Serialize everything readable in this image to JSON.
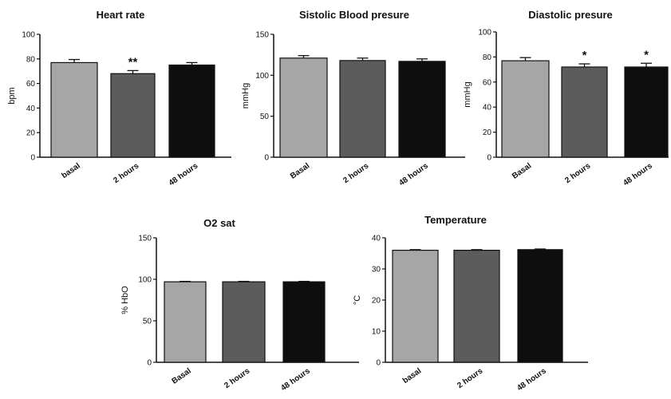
{
  "colors": {
    "basal": "#a6a6a6",
    "two_hours": "#5c5c5c",
    "forty_eight_hours": "#0e0e0e",
    "axis": "#111111"
  },
  "chart_data": [
    {
      "type": "bar",
      "title": "Heart rate",
      "ylabel": "bpm",
      "ylim": [
        0,
        100
      ],
      "yticks": [
        0,
        20,
        40,
        60,
        80,
        100
      ],
      "categories": [
        "basal",
        "2 hours",
        "48 hours"
      ],
      "values": [
        77,
        68,
        75
      ],
      "errors": [
        2.5,
        2.5,
        2
      ],
      "significance": [
        "",
        "**",
        ""
      ],
      "grid": false
    },
    {
      "type": "bar",
      "title": "Sistolic Blood presure",
      "ylabel": "mmHg",
      "ylim": [
        0,
        150
      ],
      "yticks": [
        0,
        50,
        100,
        150
      ],
      "categories": [
        "Basal",
        "2 hours",
        "48 hours"
      ],
      "values": [
        121,
        118,
        117
      ],
      "errors": [
        3,
        3,
        3
      ],
      "significance": [
        "",
        "",
        ""
      ],
      "grid": false
    },
    {
      "type": "bar",
      "title": "Diastolic presure",
      "ylabel": "mmHg",
      "ylim": [
        0,
        100
      ],
      "yticks": [
        0,
        20,
        40,
        60,
        80,
        100
      ],
      "categories": [
        "Basal",
        "2 hours",
        "48 hours"
      ],
      "values": [
        77,
        72,
        72
      ],
      "errors": [
        2.5,
        2.5,
        3
      ],
      "significance": [
        "",
        "*",
        "*"
      ],
      "grid": false
    },
    {
      "type": "bar",
      "title": "O2 sat",
      "ylabel": "%  HbO",
      "ylim": [
        0,
        150
      ],
      "yticks": [
        0,
        50,
        100,
        150
      ],
      "categories": [
        "Basal",
        "2 hours",
        "48 hours"
      ],
      "values": [
        97,
        97,
        97
      ],
      "errors": [
        0.5,
        0.5,
        0.5
      ],
      "significance": [
        "",
        "",
        ""
      ],
      "grid": false
    },
    {
      "type": "bar",
      "title": "Temperature",
      "ylabel": "°C",
      "ylim": [
        0,
        40
      ],
      "yticks": [
        0,
        10,
        20,
        30,
        40
      ],
      "categories": [
        "basal",
        "2 hours",
        "48 hours"
      ],
      "values": [
        36,
        36,
        36.2
      ],
      "errors": [
        0.2,
        0.2,
        0.2
      ],
      "significance": [
        "",
        "",
        ""
      ],
      "grid": false
    }
  ]
}
